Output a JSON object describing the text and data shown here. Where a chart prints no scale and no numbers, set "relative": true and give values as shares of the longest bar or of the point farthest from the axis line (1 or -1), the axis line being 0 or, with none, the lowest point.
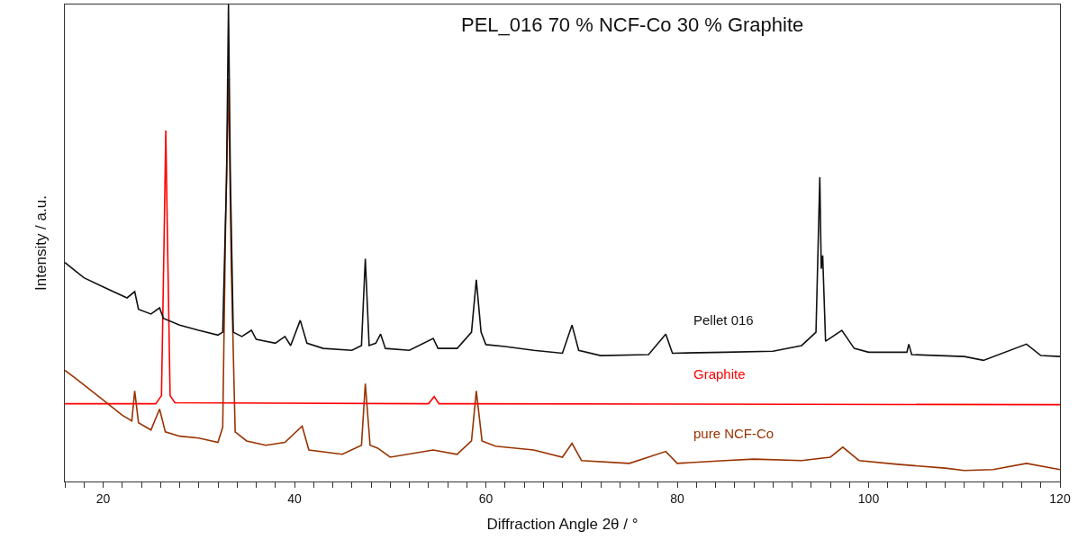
{
  "chart_data": {
    "type": "line",
    "title": "PEL_016 70 % NCF-Co 30 % Graphite",
    "xlabel": "Diffraction Angle 2θ / °",
    "ylabel": "Intensity / a.u.",
    "relative": true,
    "legend": false,
    "marker": "none",
    "line_style": "solid",
    "xlim": [
      16,
      120
    ],
    "xticks": [
      {
        "value": 16,
        "label": null
      },
      {
        "value": 18,
        "label": null
      },
      20,
      {
        "value": 22,
        "label": null
      },
      {
        "value": 24,
        "label": null
      },
      {
        "value": 26,
        "label": null
      },
      {
        "value": 28,
        "label": null
      },
      {
        "value": 30,
        "label": null
      },
      {
        "value": 32,
        "label": null
      },
      {
        "value": 34,
        "label": null
      },
      {
        "value": 36,
        "label": null
      },
      {
        "value": 38,
        "label": null
      },
      40,
      {
        "value": 42,
        "label": null
      },
      {
        "value": 44,
        "label": null
      },
      {
        "value": 46,
        "label": null
      },
      {
        "value": 48,
        "label": null
      },
      {
        "value": 50,
        "label": null
      },
      {
        "value": 52,
        "label": null
      },
      {
        "value": 54,
        "label": null
      },
      {
        "value": 56,
        "label": null
      },
      {
        "value": 58,
        "label": null
      },
      60,
      {
        "value": 62,
        "label": null
      },
      {
        "value": 64,
        "label": null
      },
      {
        "value": 66,
        "label": null
      },
      {
        "value": 68,
        "label": null
      },
      {
        "value": 70,
        "label": null
      },
      {
        "value": 72,
        "label": null
      },
      {
        "value": 74,
        "label": null
      },
      {
        "value": 76,
        "label": null
      },
      {
        "value": 78,
        "label": null
      },
      80,
      {
        "value": 82,
        "label": null
      },
      {
        "value": 84,
        "label": null
      },
      {
        "value": 86,
        "label": null
      },
      {
        "value": 88,
        "label": null
      },
      {
        "value": 90,
        "label": null
      },
      {
        "value": 92,
        "label": null
      },
      {
        "value": 94,
        "label": null
      },
      {
        "value": 96,
        "label": null
      },
      {
        "value": 98,
        "label": null
      },
      100,
      {
        "value": 102,
        "label": null
      },
      {
        "value": 104,
        "label": null
      },
      {
        "value": 106,
        "label": null
      },
      {
        "value": 108,
        "label": null
      },
      {
        "value": 110,
        "label": null
      },
      {
        "value": 112,
        "label": null
      },
      {
        "value": 114,
        "label": null
      },
      {
        "value": 116,
        "label": null
      },
      {
        "value": 118,
        "label": null
      },
      120
    ],
    "tick_labels": "x",
    "series": [
      {
        "name": "Pellet 016",
        "color": "#111111",
        "x": [
          16,
          18,
          20,
          22.5,
          23.3,
          23.7,
          25,
          25.9,
          26.3,
          28,
          30,
          32,
          32.5,
          32.9,
          33.1,
          33.3,
          33.6,
          34.5,
          35.5,
          36,
          38,
          39,
          39.6,
          40.6,
          41.3,
          43,
          46,
          47,
          47.4,
          47.8,
          48.5,
          49,
          49.5,
          52,
          54.5,
          55,
          57,
          58.5,
          59,
          59.5,
          60,
          62,
          65,
          68,
          69,
          69.7,
          72,
          77,
          78.8,
          79.5,
          85,
          90,
          93,
          94.5,
          94.9,
          95.05,
          95.2,
          95.5,
          97.2,
          98.5,
          100,
          104,
          104.2,
          104.5,
          110,
          112,
          116.5,
          118,
          120
        ],
        "values": [
          0.459,
          0.427,
          0.408,
          0.385,
          0.398,
          0.361,
          0.351,
          0.364,
          0.342,
          0.328,
          0.317,
          0.307,
          0.313,
          0.636,
          1.0,
          0.636,
          0.313,
          0.304,
          0.317,
          0.298,
          0.29,
          0.304,
          0.285,
          0.338,
          0.29,
          0.279,
          0.275,
          0.285,
          0.467,
          0.285,
          0.29,
          0.309,
          0.279,
          0.275,
          0.3,
          0.279,
          0.279,
          0.313,
          0.423,
          0.313,
          0.287,
          0.283,
          0.275,
          0.269,
          0.328,
          0.275,
          0.264,
          0.266,
          0.309,
          0.269,
          0.271,
          0.273,
          0.285,
          0.313,
          0.638,
          0.446,
          0.474,
          0.294,
          0.317,
          0.279,
          0.271,
          0.271,
          0.288,
          0.266,
          0.262,
          0.254,
          0.288,
          0.264,
          0.262
        ]
      },
      {
        "name": "Graphite",
        "color": "#ff0000",
        "x": [
          16,
          25.5,
          26.1,
          26.4,
          26.55,
          26.7,
          27,
          27.5,
          54,
          54.6,
          55.1,
          120
        ],
        "values": [
          0.163,
          0.163,
          0.18,
          0.541,
          0.736,
          0.541,
          0.18,
          0.165,
          0.163,
          0.178,
          0.163,
          0.161
        ]
      },
      {
        "name": "pure NCF-Co",
        "color": "#993300",
        "x": [
          16,
          17,
          20,
          22,
          23,
          23.3,
          23.7,
          25,
          25.9,
          26.5,
          28,
          30,
          32,
          32.5,
          32.8,
          33.1,
          33.4,
          33.8,
          35,
          37,
          39,
          40.8,
          41.5,
          45,
          47,
          47.4,
          47.9,
          48.7,
          50,
          54.5,
          57,
          58.5,
          59,
          59.6,
          61,
          65,
          68,
          69,
          70,
          75,
          78.8,
          80,
          85,
          88,
          93,
          96,
          97.3,
          99,
          103,
          108,
          110,
          113,
          116.5,
          120
        ],
        "values": [
          0.233,
          0.218,
          0.171,
          0.139,
          0.127,
          0.19,
          0.123,
          0.108,
          0.152,
          0.104,
          0.095,
          0.091,
          0.082,
          0.114,
          0.541,
          0.844,
          0.446,
          0.104,
          0.085,
          0.076,
          0.082,
          0.116,
          0.066,
          0.057,
          0.076,
          0.205,
          0.076,
          0.07,
          0.051,
          0.066,
          0.057,
          0.085,
          0.19,
          0.085,
          0.074,
          0.066,
          0.051,
          0.08,
          0.044,
          0.038,
          0.063,
          0.038,
          0.044,
          0.047,
          0.044,
          0.051,
          0.072,
          0.044,
          0.036,
          0.028,
          0.023,
          0.025,
          0.038,
          0.025
        ]
      }
    ]
  }
}
